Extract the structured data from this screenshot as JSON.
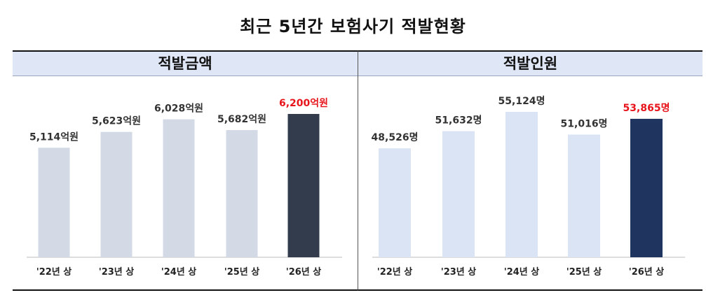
{
  "title": "최근 5년간 보험사기 적발현황",
  "chart_data": [
    {
      "type": "bar",
      "title": "적발금액",
      "categories": [
        "'22년 상",
        "'23년 상",
        "'24년 상",
        "'25년 상",
        "'26년 상"
      ],
      "values": [
        5114,
        5623,
        6028,
        5682,
        6200
      ],
      "value_labels": [
        "5,114억원",
        "5,623억원",
        "6,028억원",
        "5,682억원",
        "6,200억원"
      ],
      "highlight_index": 4,
      "colors": {
        "bar": "#d3dae6",
        "highlight_bar": "#323c4c",
        "highlight_label": "#e8141c"
      }
    },
    {
      "type": "bar",
      "title": "적발인원",
      "categories": [
        "'22년 상",
        "'23년 상",
        "'24년 상",
        "'25년 상",
        "'26년 상"
      ],
      "values": [
        48526,
        51632,
        55124,
        51016,
        53865
      ],
      "value_labels": [
        "48,526명",
        "51,632명",
        "55,124명",
        "51,016명",
        "53,865명"
      ],
      "highlight_index": 4,
      "colors": {
        "bar": "#dae4f4",
        "highlight_bar": "#1f3560",
        "highlight_label": "#e8141c"
      }
    }
  ]
}
